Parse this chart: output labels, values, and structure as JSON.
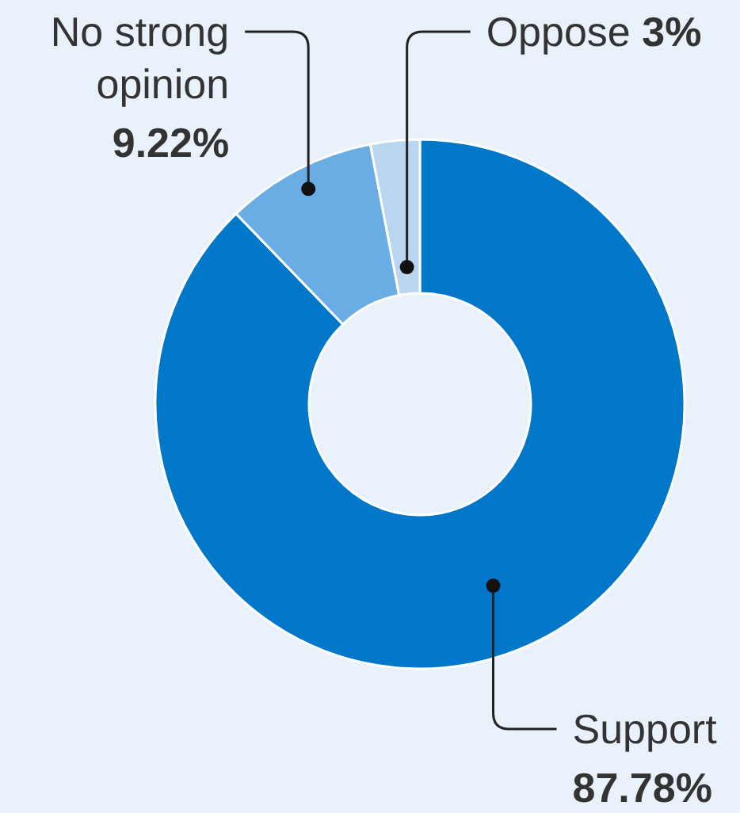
{
  "chart_data": {
    "type": "donut",
    "categories": [
      "Support",
      "No strong opinion",
      "Oppose"
    ],
    "values": [
      87.78,
      9.22,
      3
    ],
    "colors": [
      "#0077c8",
      "#6aade4",
      "#b9d5f0"
    ],
    "value_labels": [
      "87.78%",
      "9.22%",
      "3%"
    ]
  }
}
